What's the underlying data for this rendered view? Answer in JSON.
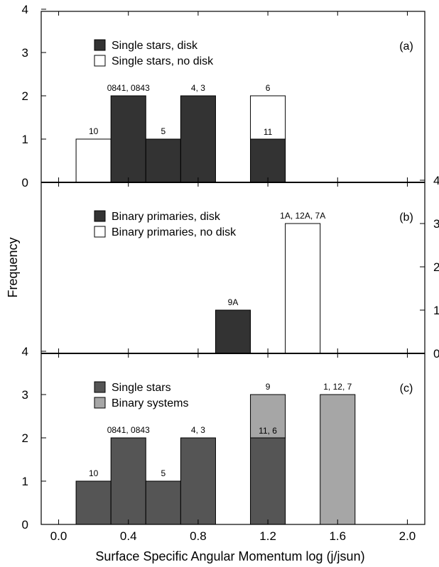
{
  "chart_data": {
    "type": "bar",
    "ylabel": "Frequency",
    "xlabel": "Surface Specific Angular Momentum log (j/jsun)",
    "x_ticks": [
      "0.0",
      "0.4",
      "0.8",
      "1.2",
      "1.6",
      "2.0"
    ],
    "xlim": [
      -0.1,
      2.1
    ],
    "bin_width": 0.2,
    "panels": [
      {
        "panel_label": "(a)",
        "ylim": [
          0,
          4
        ],
        "y_ticks": [
          "0",
          "1",
          "2",
          "3",
          "4"
        ],
        "y_axis_side": "left",
        "legend": [
          {
            "label": "Single stars, disk",
            "color": "#333333"
          },
          {
            "label": "Single stars, no disk",
            "color": "#ffffff"
          }
        ],
        "bars": [
          {
            "x0": 0.1,
            "stack": [
              {
                "series": "Single stars, no disk",
                "value": 1
              }
            ],
            "label": "10"
          },
          {
            "x0": 0.3,
            "stack": [
              {
                "series": "Single stars, disk",
                "value": 2
              }
            ],
            "label": "0841, 0843"
          },
          {
            "x0": 0.5,
            "stack": [
              {
                "series": "Single stars, disk",
                "value": 1
              }
            ],
            "label": "5"
          },
          {
            "x0": 0.7,
            "stack": [
              {
                "series": "Single stars, disk",
                "value": 2
              }
            ],
            "label": "4, 3"
          },
          {
            "x0": 1.1,
            "stack": [
              {
                "series": "Single stars, disk",
                "value": 1
              },
              {
                "series": "Single stars, no disk",
                "value": 1
              }
            ],
            "label": "6",
            "inner_label": "11"
          }
        ]
      },
      {
        "panel_label": "(b)",
        "ylim": [
          0,
          4
        ],
        "y_ticks": [
          "0",
          "1",
          "2",
          "3",
          "4"
        ],
        "y_axis_side": "right",
        "legend": [
          {
            "label": "Binary primaries, disk",
            "color": "#333333"
          },
          {
            "label": "Binary primaries, no disk",
            "color": "#ffffff"
          }
        ],
        "bars": [
          {
            "x0": 0.9,
            "stack": [
              {
                "series": "Binary primaries, disk",
                "value": 1
              }
            ],
            "label": "9A"
          },
          {
            "x0": 1.3,
            "stack": [
              {
                "series": "Binary primaries, no disk",
                "value": 3
              }
            ],
            "label": "1A, 12A, 7A"
          }
        ]
      },
      {
        "panel_label": "(c)",
        "ylim": [
          0,
          4
        ],
        "y_ticks": [
          "0",
          "1",
          "2",
          "3",
          "4"
        ],
        "y_axis_side": "left",
        "legend": [
          {
            "label": "Single stars",
            "color": "#555555"
          },
          {
            "label": "Binary systems",
            "color": "#a6a6a6"
          }
        ],
        "bars": [
          {
            "x0": 0.1,
            "stack": [
              {
                "series": "Single stars",
                "value": 1
              }
            ],
            "label": "10"
          },
          {
            "x0": 0.3,
            "stack": [
              {
                "series": "Single stars",
                "value": 2
              }
            ],
            "label": "0841, 0843"
          },
          {
            "x0": 0.5,
            "stack": [
              {
                "series": "Single stars",
                "value": 1
              }
            ],
            "label": "5"
          },
          {
            "x0": 0.7,
            "stack": [
              {
                "series": "Single stars",
                "value": 2
              }
            ],
            "label": "4, 3"
          },
          {
            "x0": 1.1,
            "stack": [
              {
                "series": "Single stars",
                "value": 2
              },
              {
                "series": "Binary systems",
                "value": 1
              }
            ],
            "label": "9",
            "inner_label": "11, 6"
          },
          {
            "x0": 1.5,
            "stack": [
              {
                "series": "Binary systems",
                "value": 3
              }
            ],
            "label": "1, 12, 7"
          }
        ]
      }
    ]
  }
}
